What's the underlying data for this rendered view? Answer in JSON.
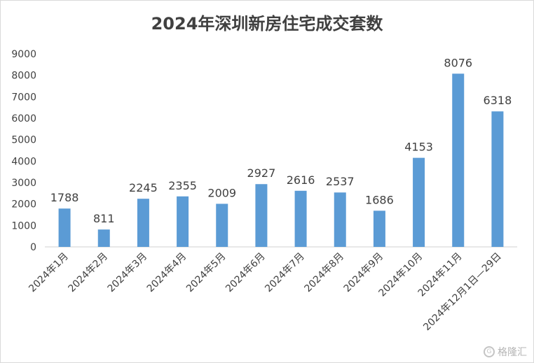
{
  "chart_data": {
    "type": "bar",
    "title": "2024年深圳新房住宅成交套数",
    "categories": [
      "2024年1月",
      "2024年2月",
      "2024年3月",
      "2024年4月",
      "2024年5月",
      "2024年6月",
      "2024年7月",
      "2024年8月",
      "2024年9月",
      "2024年10月",
      "2024年11月",
      "2024年12月1日—29日"
    ],
    "values": [
      1788,
      811,
      2245,
      2355,
      2009,
      2927,
      2616,
      2537,
      1686,
      4153,
      8076,
      6318
    ],
    "ylim": [
      0,
      9000
    ],
    "yticks": [
      0,
      1000,
      2000,
      3000,
      4000,
      5000,
      6000,
      7000,
      8000,
      9000
    ],
    "xlabel": "",
    "ylabel": "",
    "grid": false,
    "bar_color": "#5b9bd5",
    "axis_color": "#d9d9d9",
    "text_color": "#404040"
  },
  "watermark": {
    "text": "格隆汇",
    "icon": "gelonghui-logo-icon"
  }
}
